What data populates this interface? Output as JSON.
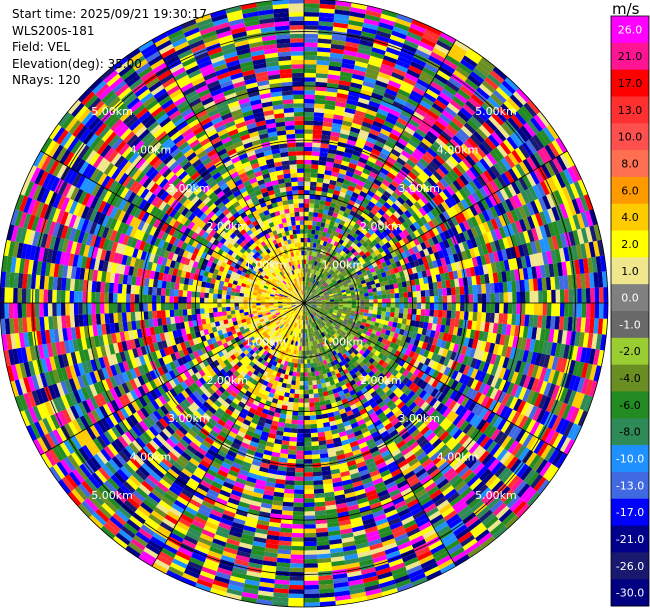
{
  "info": {
    "start_time": "Start time: 2025/09/21 19:30:17",
    "site": "WLS200s-181",
    "field": "Field: VEL",
    "elevation": "Elevation(deg): 35.00",
    "nrays": "NRays: 120"
  },
  "chart_data": {
    "type": "heatmap",
    "projection": "polar",
    "title": "",
    "field": "VEL",
    "elevation_deg": 35.0,
    "n_rays": 120,
    "range_rings": [
      {
        "label": "1.00km",
        "range_km": 1.0
      },
      {
        "label": "2.00km",
        "range_km": 2.0
      },
      {
        "label": "3.00km",
        "range_km": 3.0
      },
      {
        "label": "4.00km",
        "range_km": 4.0
      },
      {
        "label": "5.00km",
        "range_km": 5.0
      }
    ],
    "max_range_km": 5.6,
    "ring_label_bearings_deg": [
      45,
      135,
      225,
      315
    ],
    "spokes_every_deg": 30,
    "description_of_pattern": "near field within ~1km: yellow/orange positive velocities to the west, green negative velocities to the east; beyond ~2km mostly noisy multicolored gates",
    "colorbar": {
      "unit": "m/s",
      "ticks": [
        "26.0",
        "21.0",
        "17.0",
        "13.0",
        "10.0",
        "8.0",
        "6.0",
        "4.0",
        "2.0",
        "1.0",
        "0.0",
        "-1.0",
        "-2.0",
        "-4.0",
        "-6.0",
        "-8.0",
        "-10.0",
        "-13.0",
        "-17.0",
        "-21.0",
        "-26.0",
        "-30.0"
      ],
      "colors": [
        "#ff00ff",
        "#ff1493",
        "#ff0000",
        "#ff3030",
        "#ff5050",
        "#ff7050",
        "#ff9900",
        "#ffcc00",
        "#ffff00",
        "#f0e68c",
        "#808080",
        "#696969",
        "#9acd32",
        "#6b8e23",
        "#228b22",
        "#2e8b57",
        "#1e90ff",
        "#4169e1",
        "#0000ff",
        "#00008b",
        "#191970",
        "#000080"
      ]
    }
  }
}
